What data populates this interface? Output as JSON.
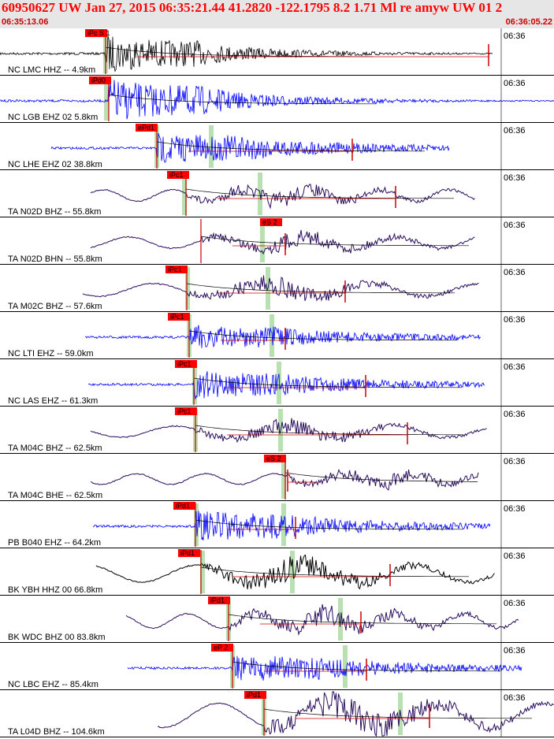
{
  "header": {
    "title": "60950627 UW Jan 27, 2015 06:35:21.44   41.2820 -122.1795  8.2 1.71 Ml re amyw UW 01   2",
    "start_time": "06:35:13.06",
    "end_time": "06:36:05.22"
  },
  "colors": {
    "header_bg": "#e6e6e6",
    "header_text": "#ff0000",
    "pick_box": "#ff0000",
    "pick_line": "#cc0000",
    "phase_window": "#b8e0b0",
    "trace_black": "#000000",
    "trace_blue": "#0000ff",
    "trace_purple": "#2a0d5e"
  },
  "traces": [
    {
      "label": "NC LMC HHZ -- 4.9km",
      "pick": "iPc S 1",
      "time_label": "06:36",
      "color": "#000000"
    },
    {
      "label": "NC LGB EHZ 02 5.8km",
      "pick": "iPd0",
      "time_label": "06:36",
      "color": "#0000ff"
    },
    {
      "label": "NC LHE EHZ 02 38.8km",
      "pick": "ePd1",
      "time_label": "06:36",
      "color": "#0000ff"
    },
    {
      "label": "TA N02D BHZ -- 55.8km",
      "pick": "iPc1",
      "time_label": "06:36",
      "color": "#2a0d5e"
    },
    {
      "label": "TA N02D BHN -- 55.8km",
      "pick": "eS 2",
      "time_label": "06:36",
      "color": "#2a0d5e"
    },
    {
      "label": "TA M02C BHZ -- 57.6km",
      "pick": "iPc1",
      "time_label": "06:36",
      "color": "#2a0d5e"
    },
    {
      "label": "NC LTI EHZ -- 59.0km",
      "pick": "iPc1",
      "time_label": "06:36",
      "color": "#0000ff"
    },
    {
      "label": "NC LAS EHZ -- 61.3km",
      "pick": "iPc1",
      "time_label": "06:36",
      "color": "#0000ff"
    },
    {
      "label": "TA M04C BHZ -- 62.5km",
      "pick": "iPc1",
      "time_label": "06:36",
      "color": "#2a0d5e"
    },
    {
      "label": "TA M04C BHE -- 62.5km",
      "pick": "eS 2",
      "time_label": "06:36",
      "color": "#2a0d5e"
    },
    {
      "label": "PB B040 EHZ -- 64.2km",
      "pick": "iPd1",
      "time_label": "06:36",
      "color": "#0000ff"
    },
    {
      "label": "BK YBH HHZ 00 66.8km",
      "pick": "iPd1",
      "time_label": "06:36",
      "color": "#000000"
    },
    {
      "label": "BK WDC BHZ 00 83.8km",
      "pick": "iPd1",
      "time_label": "06:36",
      "color": "#2a0d5e"
    },
    {
      "label": "NC LBC EHZ -- 85.4km",
      "pick": "eP 2",
      "time_label": "06:36",
      "color": "#0000ff"
    },
    {
      "label": "TA L04D BHZ -- 104.6km",
      "pick": "iPd1",
      "time_label": "06:36",
      "color": "#2a0d5e"
    }
  ]
}
